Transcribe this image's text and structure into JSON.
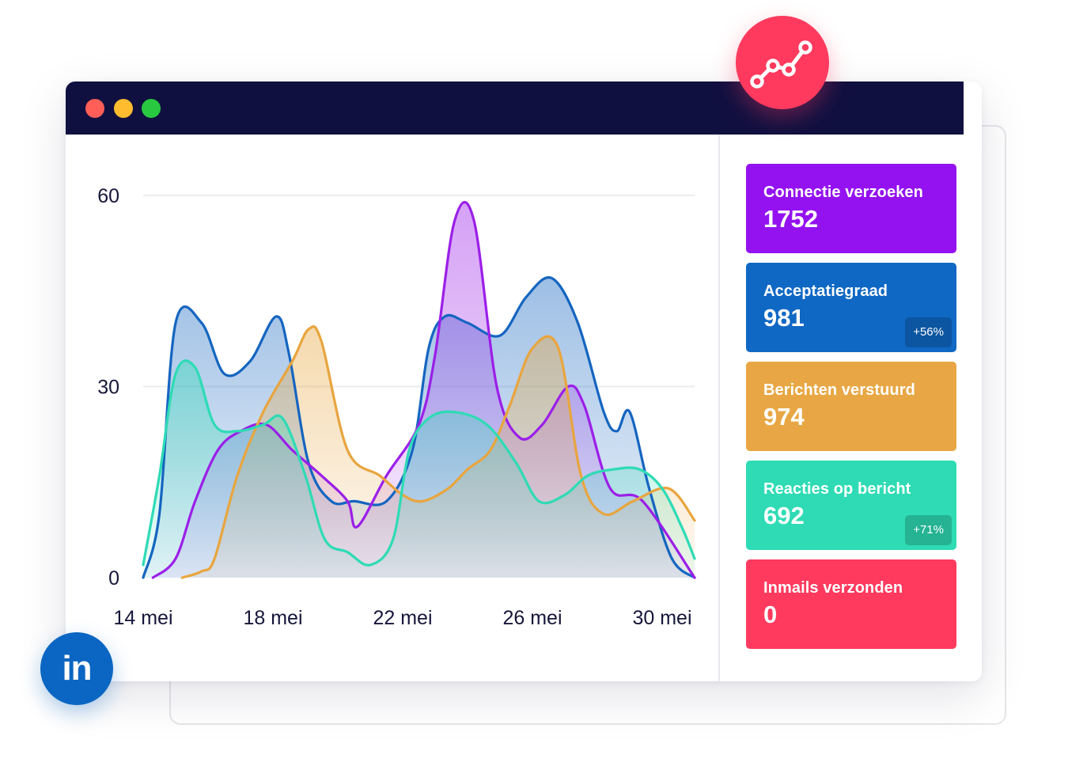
{
  "badges": {
    "analytics_icon": "line-chart-icon",
    "linkedin_logo": "in"
  },
  "window": {
    "controls": [
      "close",
      "minimize",
      "maximize"
    ]
  },
  "chart_data": {
    "type": "area",
    "y_ticks": [
      "60",
      "30",
      "0"
    ],
    "x_ticks": [
      "14 mei",
      "18 mei",
      "22 mei",
      "26 mei",
      "30 mei"
    ],
    "ylim": [
      0,
      60
    ],
    "x_domain_days": [
      14,
      31
    ],
    "grid": true,
    "series": [
      {
        "name": "Acceptatiegraad",
        "color": "#1565c0",
        "x": [
          14,
          14.5,
          15,
          15.8,
          16.5,
          17.3,
          18.1,
          18.5,
          19.1,
          19.8,
          20.5,
          21.5,
          22.3,
          22.8,
          23.3,
          24,
          25,
          25.8,
          26.6,
          27.4,
          28.2,
          28.6,
          29,
          29.6,
          30.3,
          31
        ],
        "y": [
          0,
          10,
          40,
          40,
          32,
          34,
          41,
          35,
          18,
          12,
          12,
          12,
          20,
          36,
          41,
          40,
          38,
          44,
          47,
          40,
          26,
          23,
          26,
          14,
          3,
          0
        ]
      },
      {
        "name": "Connectie verzoeken",
        "color": "#9b1fe8",
        "x": [
          14.3,
          15,
          15.6,
          16.3,
          17,
          17.8,
          18.6,
          19.5,
          20.3,
          20.6,
          21.5,
          22.5,
          23,
          23.6,
          24.2,
          24.9,
          25.6,
          26.3,
          27.1,
          27.6,
          28.4,
          29.4,
          31
        ],
        "y": [
          0,
          3,
          12,
          20,
          23,
          24,
          20,
          16,
          12,
          8,
          16,
          24,
          35,
          56,
          56,
          30,
          22,
          24,
          30,
          27,
          14,
          12,
          0
        ]
      },
      {
        "name": "Berichten verstuurd",
        "color": "#e8a53e",
        "x": [
          15.2,
          15.8,
          16.2,
          16.9,
          17.7,
          18.6,
          19.1,
          19.5,
          20.3,
          21.3,
          22,
          22.6,
          23.4,
          24,
          24.7,
          25.3,
          26,
          26.8,
          27.5,
          28.2,
          29.1,
          30.2,
          31
        ],
        "y": [
          0,
          1,
          3,
          16,
          26,
          34,
          39,
          37,
          20,
          16,
          13,
          12,
          14,
          17,
          20,
          27,
          36,
          36,
          16,
          10,
          12,
          14,
          9
        ]
      },
      {
        "name": "Reacties op bericht",
        "color": "#2edbb5",
        "x": [
          14,
          14.5,
          15,
          15.6,
          16.2,
          16.9,
          17.7,
          18.3,
          19,
          19.6,
          20.3,
          21,
          21.7,
          22.2,
          22.8,
          23.6,
          24.6,
          25.5,
          26.2,
          27,
          27.7,
          28.5,
          29.3,
          30,
          30.6,
          31
        ],
        "y": [
          2,
          16,
          32,
          33,
          24,
          23,
          24,
          25,
          16,
          6,
          4,
          2,
          6,
          20,
          25,
          26,
          24,
          18,
          12,
          13,
          16,
          17,
          17,
          14,
          8,
          3
        ]
      }
    ]
  },
  "stats": [
    {
      "label": "Connectie verzoeken",
      "value": "1752",
      "badge": "",
      "color": "#9412f0"
    },
    {
      "label": "Acceptatiegraad",
      "value": "981",
      "badge": "+56%",
      "color": "#0f68c4"
    },
    {
      "label": "Berichten verstuurd",
      "value": "974",
      "badge": "",
      "color": "#e8a744"
    },
    {
      "label": "Reacties op bericht",
      "value": "692",
      "badge": "+71%",
      "color": "#2edbb4"
    },
    {
      "label": "Inmails verzonden",
      "value": "0",
      "badge": "",
      "color": "#ff3a5e"
    }
  ]
}
